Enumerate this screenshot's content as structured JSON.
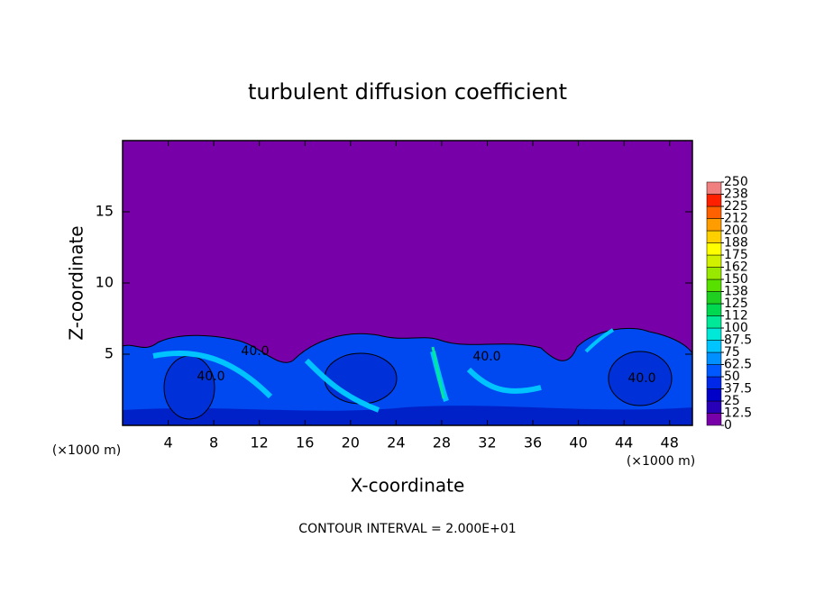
{
  "chart_data": {
    "type": "contour",
    "title": "turbulent diffusion coefficient",
    "x_label": "X-coordinate",
    "y_label": "Z-coordinate",
    "x_unit_labels": [
      "(×1000 m)",
      "(×1000 m)"
    ],
    "footer": "CONTOUR INTERVAL = 2.000E+01",
    "contour_labels": [
      "40.0",
      "40.0",
      "40.0",
      "40.0"
    ],
    "xlim": [
      0,
      50
    ],
    "xticks": [
      4,
      8,
      12,
      16,
      20,
      24,
      28,
      32,
      36,
      40,
      44,
      48
    ],
    "ylim": [
      0,
      20
    ],
    "yticks": [
      5,
      10,
      15
    ],
    "colorbar": {
      "lim": [
        0,
        250
      ],
      "ticks": [
        0,
        12.5,
        25,
        37.5,
        50,
        62.5,
        75,
        87.5,
        100,
        {
          "value": 112.5,
          "label": "112"
        },
        125,
        {
          "value": 137.5,
          "label": "138"
        },
        150,
        {
          "value": 162.5,
          "label": "162"
        },
        175,
        {
          "value": 187.5,
          "label": "188"
        },
        200,
        {
          "value": 212.5,
          "label": "212"
        },
        225,
        {
          "value": 237.5,
          "label": "238"
        },
        250
      ],
      "colors": [
        "#7800a8",
        "#2800b8",
        "#0000c8",
        "#0028e8",
        "#0058ff",
        "#0090ff",
        "#00c4ff",
        "#00e8d8",
        "#00e898",
        "#00d850",
        "#20d020",
        "#58e000",
        "#98e800",
        "#d0f000",
        "#ffff00",
        "#ffd000",
        "#ff9c00",
        "#ff6000",
        "#ff2000",
        "#f08080"
      ]
    }
  }
}
